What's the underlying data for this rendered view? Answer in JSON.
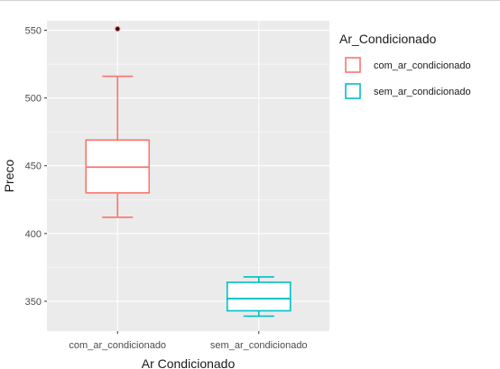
{
  "chart_data": {
    "type": "boxplot",
    "title": "",
    "xlabel": "Ar  Condicionado",
    "ylabel": "Preco",
    "categories": [
      "com_ar_condicionado",
      "sem_ar_condicionado"
    ],
    "ylim": [
      328,
      557
    ],
    "yticks": [
      350,
      400,
      450,
      500,
      550
    ],
    "ytick_labels": [
      "350",
      "400",
      "450",
      "500",
      "550"
    ],
    "grid": true,
    "legend": {
      "title": "Ar_Condicionado",
      "placement": "right",
      "entries": [
        "com_ar_condicionado",
        "sem_ar_condicionado"
      ]
    },
    "series": [
      {
        "name": "com_ar_condicionado",
        "color": "#F8766D",
        "min": 412,
        "q1": 430,
        "median": 449,
        "q3": 469,
        "max": 516,
        "outliers": [
          551
        ]
      },
      {
        "name": "sem_ar_condicionado",
        "color": "#00BFC4",
        "min": 339,
        "q1": 343,
        "median": 352,
        "q3": 364,
        "max": 368,
        "outliers": []
      }
    ],
    "panel_background": "#EBEBEB",
    "grid_color": "#FFFFFF"
  }
}
